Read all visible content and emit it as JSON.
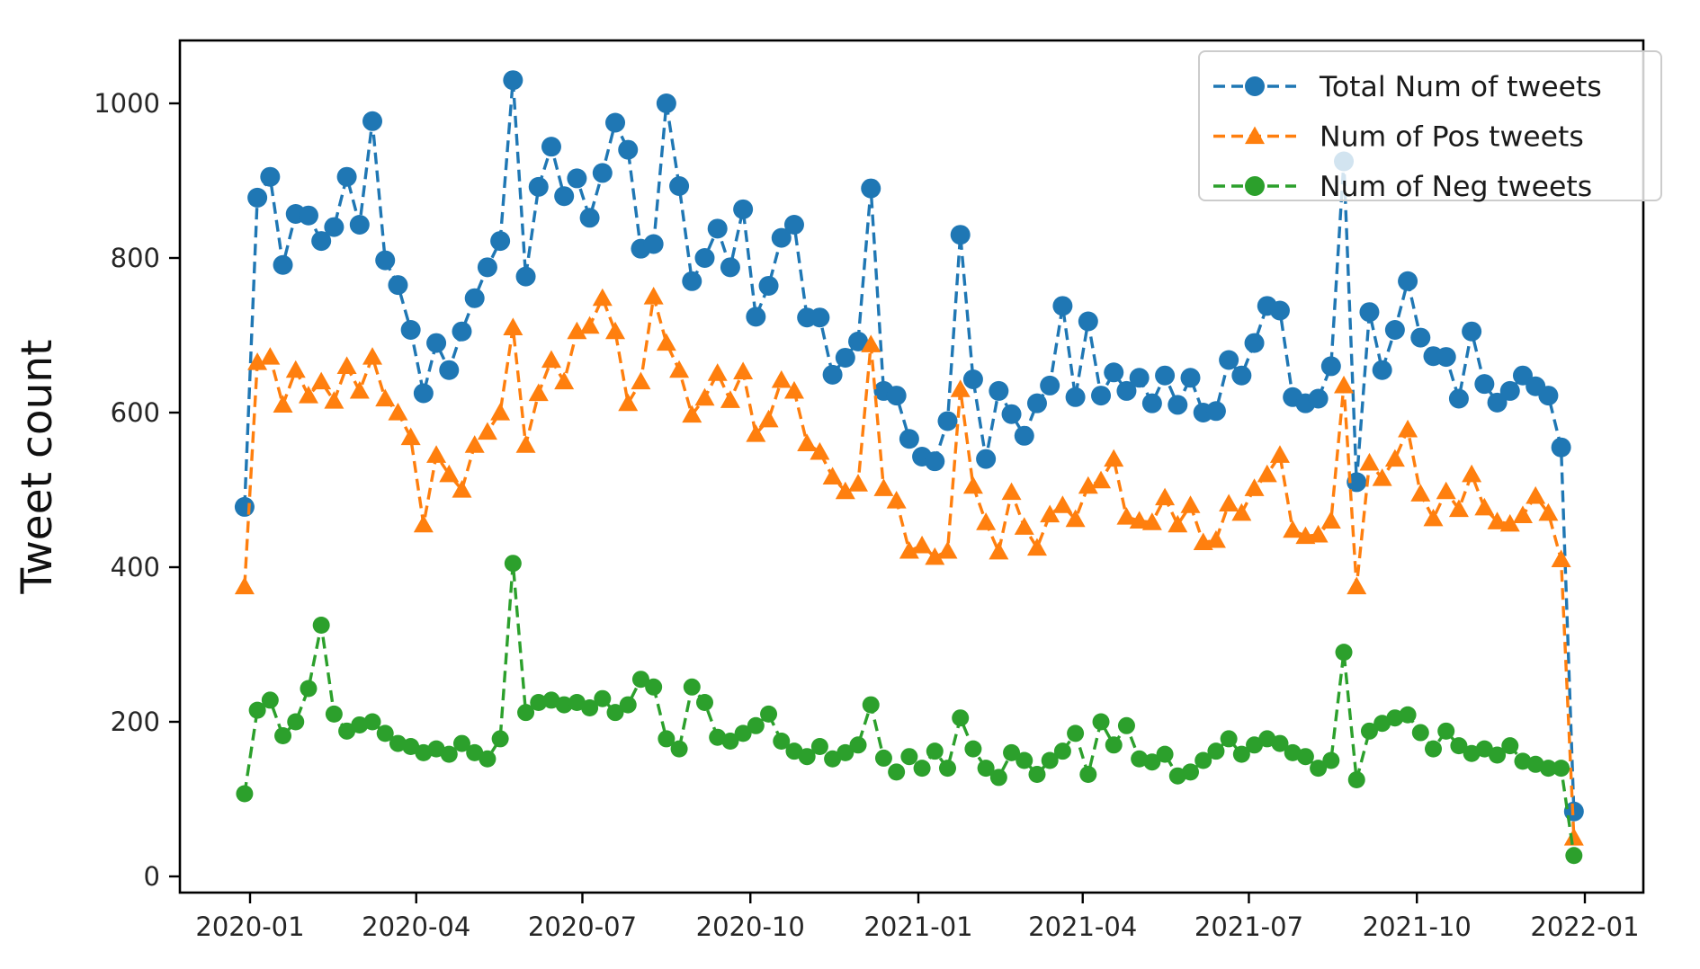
{
  "figure": {
    "background": "#ffffff",
    "spine_color": "#000000",
    "tick_color": "#262626"
  },
  "legend": {
    "position": "upper right",
    "items": [
      {
        "label": "Total Num of tweets",
        "color": "#1f77b4",
        "marker": "circle"
      },
      {
        "label": "Num of Pos tweets",
        "color": "#ff7f0e",
        "marker": "triangle"
      },
      {
        "label": "Num of Neg tweets",
        "color": "#2ca02c",
        "marker": "circle"
      }
    ]
  },
  "chart_data": {
    "type": "line",
    "title": "",
    "xlabel": "",
    "ylabel": "Tweet count",
    "grid": false,
    "line_style": "dashed",
    "x_start": "2019-12-29",
    "x_freq_days": 7,
    "num_points": 105,
    "ylim": [
      -21,
      1081
    ],
    "y_ticks": [
      0,
      200,
      400,
      600,
      800,
      1000
    ],
    "x_ticks": [
      {
        "label": "2020-01",
        "day": 0
      },
      {
        "label": "2020-04",
        "day": 91
      },
      {
        "label": "2020-07",
        "day": 182
      },
      {
        "label": "2020-10",
        "day": 274
      },
      {
        "label": "2021-01",
        "day": 366
      },
      {
        "label": "2021-04",
        "day": 456
      },
      {
        "label": "2021-07",
        "day": 547
      },
      {
        "label": "2021-10",
        "day": 639
      },
      {
        "label": "2022-01",
        "day": 731
      }
    ],
    "legend_position": "upper right",
    "series": [
      {
        "name": "Total Num of tweets",
        "color": "#1f77b4",
        "marker": "circle",
        "marker_radius": 11,
        "values": [
          478,
          878,
          905,
          791,
          857,
          855,
          822,
          840,
          905,
          843,
          977,
          797,
          765,
          707,
          625,
          690,
          655,
          705,
          748,
          788,
          822,
          1030,
          776,
          892,
          944,
          880,
          903,
          852,
          910,
          975,
          940,
          812,
          818,
          1000,
          893,
          770,
          800,
          838,
          788,
          863,
          724,
          764,
          826,
          843,
          723,
          723,
          649,
          671,
          692,
          890,
          628,
          622,
          566,
          543,
          537,
          589,
          830,
          643,
          540,
          628,
          598,
          570,
          612,
          635,
          738,
          620,
          718,
          622,
          652,
          628,
          645,
          612,
          648,
          610,
          645,
          600,
          602,
          668,
          648,
          690,
          738,
          732,
          620,
          612,
          618,
          660,
          925,
          510,
          730,
          655,
          707,
          770,
          697,
          673,
          672,
          618,
          705,
          637,
          613,
          628,
          648,
          634,
          622,
          555,
          84
        ]
      },
      {
        "name": "Num of Pos tweets",
        "color": "#ff7f0e",
        "marker": "triangle",
        "marker_radius": 11,
        "values": [
          375,
          665,
          672,
          610,
          655,
          622,
          640,
          615,
          660,
          628,
          672,
          618,
          600,
          568,
          455,
          545,
          520,
          500,
          558,
          575,
          600,
          710,
          558,
          625,
          668,
          640,
          705,
          712,
          748,
          705,
          612,
          640,
          750,
          690,
          655,
          597,
          619,
          651,
          616,
          653,
          572,
          591,
          642,
          628,
          560,
          549,
          517,
          498,
          508,
          688,
          502,
          486,
          421,
          428,
          413,
          421,
          630,
          505,
          458,
          420,
          497,
          452,
          425,
          468,
          480,
          462,
          505,
          512,
          540,
          465,
          460,
          458,
          490,
          455,
          480,
          432,
          435,
          482,
          470,
          502,
          520,
          545,
          448,
          440,
          442,
          460,
          635,
          375,
          535,
          515,
          540,
          578,
          495,
          463,
          498,
          475,
          520,
          477,
          459,
          456,
          467,
          492,
          470,
          410,
          50
        ]
      },
      {
        "name": "Num of Neg tweets",
        "color": "#2ca02c",
        "marker": "circle",
        "marker_radius": 9.5,
        "values": [
          107,
          215,
          228,
          182,
          200,
          243,
          325,
          210,
          188,
          196,
          200,
          185,
          172,
          168,
          160,
          165,
          158,
          172,
          160,
          152,
          178,
          405,
          212,
          225,
          228,
          222,
          225,
          218,
          230,
          212,
          222,
          255,
          245,
          178,
          165,
          245,
          225,
          180,
          175,
          185,
          195,
          210,
          175,
          162,
          155,
          168,
          152,
          160,
          170,
          222,
          153,
          135,
          155,
          140,
          162,
          140,
          205,
          165,
          140,
          128,
          160,
          150,
          132,
          150,
          162,
          185,
          132,
          200,
          170,
          195,
          152,
          148,
          158,
          130,
          135,
          150,
          162,
          178,
          158,
          170,
          178,
          172,
          160,
          155,
          140,
          150,
          290,
          125,
          188,
          198,
          205,
          209,
          186,
          165,
          188,
          169,
          159,
          165,
          157,
          169,
          149,
          145,
          140,
          140,
          27
        ]
      }
    ]
  }
}
